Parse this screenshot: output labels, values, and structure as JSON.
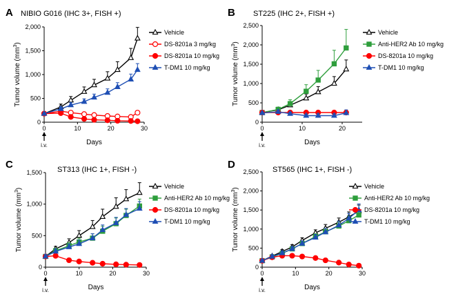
{
  "chart_data": [
    {
      "type": "line",
      "panel": "A",
      "title": "NIBIO G016 (IHC 3+, FISH +)",
      "xlabel": "Days",
      "ylabel": "Tumor volume (mm3)",
      "ylabel_main": "Tumor volume (mm",
      "ylabel_sup": "3",
      "ylabel_end": ")",
      "dose_label": "i.v.",
      "xlim": [
        0,
        30
      ],
      "ylim": [
        0,
        2000
      ],
      "xticks": [
        0,
        10,
        20,
        30
      ],
      "yticks": [
        0,
        500,
        1000,
        1500,
        2000
      ],
      "ytick_labels": [
        "0",
        "500",
        "1,000",
        "1,500",
        "2,000"
      ],
      "legend_position": "top-right",
      "series": [
        {
          "name": "Vehicle",
          "color": "#000000",
          "marker": "triangle-open",
          "x": [
            0,
            5,
            8,
            12,
            15,
            19,
            22,
            26,
            28
          ],
          "y": [
            180,
            320,
            460,
            640,
            780,
            920,
            1100,
            1350,
            1760
          ],
          "err": [
            30,
            60,
            80,
            100,
            120,
            140,
            170,
            200,
            230
          ]
        },
        {
          "name": "DS-8201a 3 mg/kg",
          "color": "#ff0000",
          "marker": "circle-open",
          "x": [
            0,
            5,
            8,
            12,
            15,
            19,
            22,
            26,
            28
          ],
          "y": [
            180,
            230,
            200,
            170,
            150,
            130,
            120,
            110,
            200
          ],
          "err": [
            20,
            30,
            30,
            30,
            30,
            30,
            30,
            30,
            40
          ]
        },
        {
          "name": "DS-8201a 10 mg/kg",
          "color": "#ff0000",
          "marker": "circle-filled",
          "x": [
            0,
            5,
            8,
            12,
            15,
            19,
            22,
            26,
            28
          ],
          "y": [
            180,
            190,
            110,
            70,
            50,
            40,
            30,
            25,
            20
          ],
          "err": [
            20,
            20,
            20,
            15,
            10,
            10,
            10,
            10,
            10
          ]
        },
        {
          "name": "T-DM1 10 mg/kg",
          "color": "#1f4fb4",
          "marker": "triangle-filled",
          "x": [
            0,
            5,
            8,
            12,
            15,
            19,
            22,
            26,
            28
          ],
          "y": [
            180,
            280,
            360,
            430,
            520,
            620,
            740,
            900,
            1100
          ],
          "err": [
            20,
            40,
            50,
            60,
            70,
            80,
            90,
            110,
            130
          ]
        }
      ]
    },
    {
      "type": "line",
      "panel": "B",
      "title": "ST225 (IHC 2+, FISH +)",
      "xlabel": "Days",
      "ylabel": "Tumor volume (mm3)",
      "ylabel_main": "Tumor volume (mm",
      "ylabel_sup": "3",
      "ylabel_end": ")",
      "dose_label": "i.v.",
      "xlim": [
        0,
        25
      ],
      "ylim": [
        0,
        2500
      ],
      "xticks": [
        0,
        10,
        20
      ],
      "yticks": [
        0,
        500,
        1000,
        1500,
        2000,
        2500
      ],
      "ytick_labels": [
        "0",
        "500",
        "1,000",
        "1,500",
        "2,000",
        "2,500"
      ],
      "legend_position": "top-right",
      "series": [
        {
          "name": "Vehicle",
          "color": "#000000",
          "marker": "triangle-open",
          "x": [
            0,
            4,
            7,
            11,
            14,
            18,
            21
          ],
          "y": [
            250,
            320,
            440,
            620,
            780,
            1000,
            1370
          ],
          "err": [
            40,
            60,
            80,
            110,
            140,
            180,
            240
          ]
        },
        {
          "name": "Anti-HER2 Ab 10 mg/kg",
          "color": "#2e9e3c",
          "marker": "square-filled",
          "x": [
            0,
            4,
            7,
            11,
            14,
            18,
            21
          ],
          "y": [
            250,
            330,
            480,
            800,
            1090,
            1510,
            1920
          ],
          "err": [
            40,
            60,
            100,
            170,
            250,
            350,
            480
          ]
        },
        {
          "name": "DS-8201a 10 mg/kg",
          "color": "#ff0000",
          "marker": "circle-filled",
          "x": [
            0,
            4,
            7,
            11,
            14,
            18,
            21
          ],
          "y": [
            250,
            250,
            250,
            250,
            250,
            250,
            250
          ],
          "err": [
            20,
            20,
            20,
            20,
            20,
            20,
            20
          ]
        },
        {
          "name": "T-DM1 10 mg/kg",
          "color": "#1f4fb4",
          "marker": "triangle-filled",
          "x": [
            0,
            4,
            7,
            11,
            14,
            18,
            21
          ],
          "y": [
            240,
            270,
            220,
            170,
            170,
            170,
            240
          ],
          "err": [
            30,
            40,
            40,
            40,
            50,
            50,
            80
          ]
        }
      ]
    },
    {
      "type": "line",
      "panel": "C",
      "title": "ST313 (IHC 1+, FISH -)",
      "xlabel": "Days",
      "ylabel": "Tumor volume (mm3)",
      "ylabel_main": "Tumor volume (mm",
      "ylabel_sup": "3",
      "ylabel_end": ")",
      "dose_label": "i.v.",
      "xlim": [
        0,
        30
      ],
      "ylim": [
        0,
        1500
      ],
      "xticks": [
        0,
        10,
        20,
        30
      ],
      "yticks": [
        0,
        500,
        1000,
        1500
      ],
      "ytick_labels": [
        "0",
        "500",
        "1,000",
        "1,500"
      ],
      "legend_position": "top-right",
      "series": [
        {
          "name": "Vehicle",
          "color": "#000000",
          "marker": "triangle-open",
          "x": [
            0,
            3,
            7,
            10,
            14,
            17,
            21,
            24,
            28
          ],
          "y": [
            170,
            290,
            390,
            500,
            640,
            800,
            960,
            1080,
            1180
          ],
          "err": [
            30,
            40,
            60,
            80,
            100,
            120,
            140,
            150,
            160
          ]
        },
        {
          "name": "Anti-HER2 Ab 10 mg/kg",
          "color": "#2e9e3c",
          "marker": "square-filled",
          "x": [
            0,
            3,
            7,
            10,
            14,
            17,
            21,
            24,
            28
          ],
          "y": [
            170,
            260,
            340,
            400,
            460,
            570,
            690,
            820,
            970
          ],
          "err": [
            30,
            40,
            50,
            60,
            70,
            80,
            90,
            100,
            110
          ]
        },
        {
          "name": "DS-8201a 10 mg/kg",
          "color": "#ff0000",
          "marker": "circle-filled",
          "x": [
            0,
            3,
            7,
            10,
            14,
            17,
            21,
            24,
            28
          ],
          "y": [
            170,
            180,
            110,
            90,
            70,
            55,
            45,
            40,
            35
          ],
          "err": [
            20,
            20,
            15,
            10,
            10,
            10,
            10,
            10,
            10
          ]
        },
        {
          "name": "T-DM1 10 mg/kg",
          "color": "#1f4fb4",
          "marker": "triangle-filled",
          "x": [
            0,
            3,
            7,
            10,
            14,
            17,
            21,
            24,
            28
          ],
          "y": [
            170,
            250,
            320,
            370,
            460,
            590,
            700,
            830,
            930
          ],
          "err": [
            30,
            40,
            50,
            60,
            70,
            80,
            90,
            100,
            110
          ]
        }
      ]
    },
    {
      "type": "line",
      "panel": "D",
      "title": "ST565 (IHC 1+, FISH -)",
      "xlabel": "Days",
      "ylabel": "Tumor volume (mm3)",
      "ylabel_main": "Tumor volume (mm",
      "ylabel_sup": "3",
      "ylabel_end": ")",
      "dose_label": "i.v.",
      "xlim": [
        0,
        30
      ],
      "ylim": [
        0,
        2500
      ],
      "xticks": [
        0,
        10,
        20,
        30
      ],
      "yticks": [
        0,
        500,
        1000,
        1500,
        2000,
        2500
      ],
      "ytick_labels": [
        "0",
        "500",
        "1,000",
        "1,500",
        "2,000",
        "2,500"
      ],
      "legend_position": "top-right",
      "series": [
        {
          "name": "Vehicle",
          "color": "#000000",
          "marker": "triangle-open",
          "x": [
            0,
            3,
            6,
            9,
            12,
            16,
            19,
            23,
            26,
            29
          ],
          "y": [
            170,
            290,
            410,
            530,
            700,
            900,
            1020,
            1180,
            1320,
            1470
          ],
          "err": [
            30,
            40,
            50,
            60,
            70,
            80,
            100,
            110,
            130,
            160
          ]
        },
        {
          "name": "Anti-HER2 Ab 10 mg/kg",
          "color": "#2e9e3c",
          "marker": "square-filled",
          "x": [
            0,
            3,
            6,
            9,
            12,
            16,
            19,
            23,
            26,
            29
          ],
          "y": [
            170,
            270,
            360,
            480,
            620,
            800,
            930,
            1080,
            1220,
            1370
          ],
          "err": [
            30,
            40,
            50,
            60,
            70,
            80,
            90,
            100,
            120,
            130
          ]
        },
        {
          "name": "DS-8201a 10 mg/kg",
          "color": "#ff0000",
          "marker": "circle-filled",
          "x": [
            0,
            3,
            6,
            9,
            12,
            16,
            19,
            23,
            26,
            29
          ],
          "y": [
            170,
            260,
            300,
            300,
            280,
            240,
            180,
            120,
            70,
            40
          ],
          "err": [
            20,
            30,
            30,
            30,
            30,
            30,
            20,
            20,
            15,
            10
          ]
        },
        {
          "name": "T-DM1 10 mg/kg",
          "color": "#1f4fb4",
          "marker": "triangle-filled",
          "x": [
            0,
            3,
            6,
            9,
            12,
            16,
            19,
            23,
            26,
            29
          ],
          "y": [
            170,
            280,
            370,
            480,
            620,
            780,
            920,
            1100,
            1280,
            1500
          ],
          "err": [
            30,
            40,
            50,
            60,
            70,
            80,
            100,
            110,
            130,
            160
          ]
        }
      ]
    }
  ]
}
